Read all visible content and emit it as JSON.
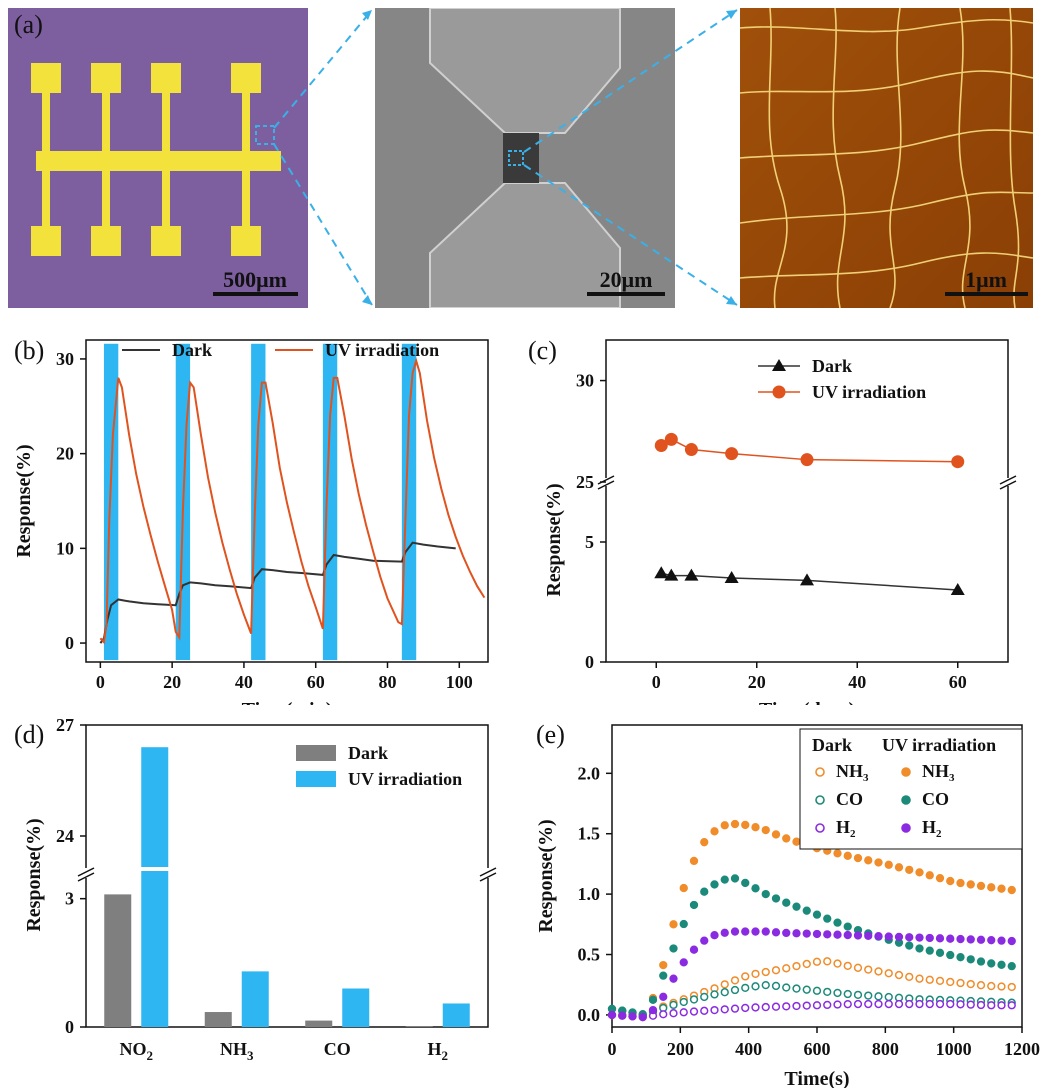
{
  "panel_labels": {
    "a": "(a)",
    "b": "(b)",
    "c": "(c)",
    "d": "(d)",
    "e": "(e)"
  },
  "images": {
    "optical": {
      "scale_bar": "500μm",
      "background": "#7d5fa0",
      "electrode_color": "#f2e23b"
    },
    "sem": {
      "scale_bar": "20μm"
    },
    "afm": {
      "scale_bar": "1μm"
    }
  },
  "colors": {
    "dark": "#333333",
    "uv_line": "#e0531f",
    "uv_bar": "#2db6f2",
    "zoom_line": "#3ab0e8",
    "dark_bar": "#7f7f7f",
    "nh3": "#f08c2a",
    "co": "#1c8a7a",
    "h2": "#8a2be2"
  },
  "chart_data": [
    {
      "id": "b",
      "type": "line",
      "xlabel": "Time(min)",
      "ylabel": "Response(%)",
      "xlim": [
        -4,
        108
      ],
      "ylim": [
        -2,
        32
      ],
      "xticks": [
        0,
        20,
        40,
        60,
        80,
        100
      ],
      "yticks": [
        0,
        10,
        20,
        30
      ],
      "legend": {
        "position": "top",
        "entries": [
          "Dark",
          "UV irradiation"
        ]
      },
      "uv_on_intervals": [
        [
          1,
          5
        ],
        [
          21,
          25
        ],
        [
          42,
          46
        ],
        [
          62,
          66
        ],
        [
          84,
          88
        ]
      ],
      "series": [
        {
          "name": "Dark",
          "x": [
            0,
            1,
            2,
            3,
            5,
            8,
            12,
            16,
            21,
            22,
            23,
            25,
            28,
            32,
            36,
            42,
            43,
            45,
            48,
            52,
            56,
            62,
            63,
            65,
            68,
            72,
            76,
            84,
            85,
            87,
            90,
            94,
            99
          ],
          "y": [
            0,
            0.5,
            2.5,
            4,
            4.6,
            4.4,
            4.2,
            4.1,
            4.0,
            5.2,
            6.1,
            6.4,
            6.3,
            6.1,
            6.0,
            5.8,
            6.9,
            7.8,
            7.7,
            7.5,
            7.4,
            7.2,
            8.3,
            9.3,
            9.1,
            8.9,
            8.7,
            8.6,
            9.6,
            10.6,
            10.4,
            10.2,
            10.0
          ]
        },
        {
          "name": "UV irradiation",
          "x": [
            0,
            1,
            1.7,
            2.5,
            3.5,
            5,
            6,
            8,
            10,
            12,
            14,
            16,
            18,
            20,
            21,
            22,
            23,
            24,
            25,
            26,
            28,
            30,
            32,
            34,
            36,
            38,
            40,
            42,
            43,
            44,
            45,
            46,
            48,
            50,
            52,
            54,
            56,
            58,
            60,
            62,
            63,
            64,
            65,
            66,
            68,
            70,
            72,
            74,
            76,
            78,
            80,
            83,
            84,
            85,
            86,
            87,
            88,
            89,
            91,
            93,
            95,
            97,
            99,
            101,
            103,
            105,
            107
          ],
          "y": [
            0.5,
            0.1,
            2,
            13,
            22,
            28,
            27,
            22,
            17.8,
            14.4,
            11.4,
            8.6,
            6,
            3.5,
            1.2,
            0.6,
            14,
            23,
            27.5,
            27,
            22,
            17.5,
            13.8,
            10.6,
            7.8,
            5.2,
            3,
            1.0,
            13.5,
            23,
            27.5,
            27.5,
            23.3,
            18.5,
            14.8,
            11.6,
            8.6,
            6,
            3.8,
            1.5,
            14.5,
            24,
            28,
            28,
            24,
            19.5,
            15.7,
            12.5,
            9.7,
            7,
            4.7,
            2.2,
            2,
            13,
            24,
            28.5,
            29.8,
            28.5,
            23.5,
            19.5,
            16.3,
            13.5,
            11.2,
            9.2,
            7.5,
            6,
            4.8
          ]
        }
      ]
    },
    {
      "id": "c",
      "type": "line",
      "xlabel": "Time(days)",
      "ylabel": "Response(%)",
      "xlim": [
        -10,
        70
      ],
      "broken_axis": {
        "lower": [
          0,
          7.5
        ],
        "upper": [
          25,
          32
        ]
      },
      "xticks": [
        0,
        20,
        40,
        60
      ],
      "yticks": [
        0,
        5,
        25,
        30
      ],
      "legend": {
        "position": "top-right",
        "entries": [
          "Dark",
          "UV irradiation"
        ]
      },
      "series": [
        {
          "name": "Dark",
          "marker": "triangle",
          "x": [
            1,
            3,
            7,
            15,
            30,
            60
          ],
          "y": [
            3.7,
            3.6,
            3.6,
            3.5,
            3.4,
            3.0
          ]
        },
        {
          "name": "UV irradiation",
          "marker": "circle",
          "x": [
            1,
            3,
            7,
            15,
            30,
            60
          ],
          "y": [
            26.8,
            27.1,
            26.6,
            26.4,
            26.1,
            26.0
          ]
        }
      ]
    },
    {
      "id": "d",
      "type": "bar",
      "ylabel": "Response(%)",
      "categories": [
        "NO2",
        "NH3",
        "CO",
        "H2"
      ],
      "broken_axis": {
        "lower": [
          0,
          3.6
        ],
        "upper": [
          23,
          27
        ]
      },
      "yticks": [
        0,
        3,
        24,
        27
      ],
      "legend": {
        "position": "top-right",
        "entries": [
          "Dark",
          "UV irradiation"
        ]
      },
      "series": [
        {
          "name": "Dark",
          "values": [
            3.1,
            0.35,
            0.15,
            0.02
          ]
        },
        {
          "name": "UV irradiation",
          "values": [
            26.4,
            1.3,
            0.9,
            0.55
          ]
        }
      ]
    },
    {
      "id": "e",
      "type": "scatter",
      "xlabel": "Time(s)",
      "ylabel": "Response(%)",
      "xlim": [
        0,
        1200
      ],
      "ylim": [
        -0.1,
        2.4
      ],
      "xticks": [
        0,
        200,
        400,
        600,
        800,
        1000,
        1200
      ],
      "yticks": [
        0.0,
        0.5,
        1.0,
        1.5,
        2.0
      ],
      "legend": {
        "position": "top-right",
        "headers": [
          "Dark",
          "UV irradiation"
        ],
        "gases": [
          "NH",
          "CO",
          "H"
        ],
        "subscripts": [
          "3",
          "",
          "2"
        ]
      },
      "series": [
        {
          "name": "NH3 Dark",
          "x": [
            0,
            100,
            130,
            200,
            300,
            400,
            500,
            600,
            620,
            700,
            800,
            900,
            1000,
            1100,
            1180
          ],
          "y": [
            0.0,
            0.0,
            0.05,
            0.12,
            0.22,
            0.33,
            0.38,
            0.44,
            0.45,
            0.4,
            0.35,
            0.3,
            0.27,
            0.24,
            0.23
          ]
        },
        {
          "name": "CO Dark",
          "x": [
            0,
            100,
            130,
            200,
            300,
            400,
            460,
            500,
            600,
            700,
            800,
            900,
            1000,
            1100,
            1180
          ],
          "y": [
            0.05,
            0.0,
            0.04,
            0.1,
            0.17,
            0.23,
            0.25,
            0.23,
            0.2,
            0.17,
            0.15,
            0.13,
            0.12,
            0.11,
            0.1
          ]
        },
        {
          "name": "H2 Dark",
          "x": [
            0,
            100,
            130,
            200,
            300,
            400,
            500,
            600,
            700,
            800,
            900,
            1000,
            1100,
            1180
          ],
          "y": [
            0.0,
            -0.02,
            0.0,
            0.02,
            0.04,
            0.06,
            0.07,
            0.08,
            0.09,
            0.09,
            0.09,
            0.09,
            0.08,
            0.08
          ]
        },
        {
          "name": "NH3 UV irradiation",
          "x": [
            0,
            100,
            140,
            180,
            220,
            260,
            300,
            330,
            360,
            400,
            450,
            500,
            600,
            700,
            800,
            900,
            1000,
            1100,
            1180
          ],
          "y": [
            0.0,
            -0.02,
            0.3,
            0.75,
            1.15,
            1.4,
            1.52,
            1.57,
            1.58,
            1.57,
            1.53,
            1.47,
            1.38,
            1.31,
            1.25,
            1.18,
            1.1,
            1.06,
            1.03
          ]
        },
        {
          "name": "CO UV irradiation",
          "x": [
            0,
            100,
            140,
            180,
            220,
            260,
            300,
            330,
            360,
            400,
            450,
            500,
            600,
            700,
            800,
            900,
            1000,
            1100,
            1180
          ],
          "y": [
            0.05,
            0.0,
            0.25,
            0.55,
            0.82,
            1.0,
            1.08,
            1.12,
            1.13,
            1.08,
            1.0,
            0.94,
            0.83,
            0.72,
            0.63,
            0.55,
            0.49,
            0.43,
            0.4
          ]
        },
        {
          "name": "H2 UV irradiation",
          "x": [
            0,
            100,
            140,
            180,
            220,
            260,
            300,
            330,
            360,
            400,
            450,
            500,
            600,
            700,
            800,
            900,
            1000,
            1100,
            1180
          ],
          "y": [
            0.0,
            -0.02,
            0.1,
            0.3,
            0.48,
            0.6,
            0.66,
            0.68,
            0.69,
            0.69,
            0.69,
            0.68,
            0.67,
            0.66,
            0.65,
            0.64,
            0.63,
            0.62,
            0.61
          ]
        }
      ]
    }
  ]
}
